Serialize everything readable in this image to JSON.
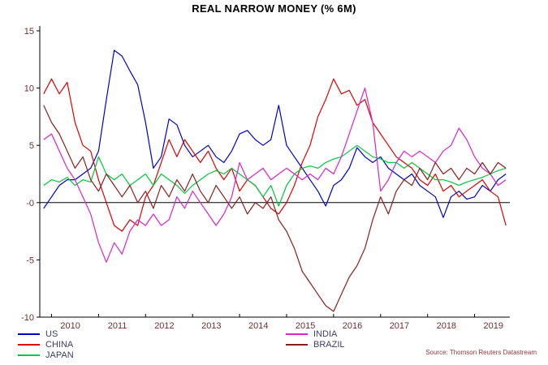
{
  "chart_data": {
    "type": "line",
    "title": "REAL NARROW MONEY (% 6M)",
    "source": "Source: Thomson Reuters Datastream",
    "x_range": [
      2009.75,
      2019.75
    ],
    "y_range": [
      -10,
      15
    ],
    "x_start": 2009.8333,
    "x_step": 0.16667,
    "grid": false,
    "zero_line": true,
    "legend_position": "bottom",
    "legend_columns": [
      [
        "US",
        "CHINA",
        "JAPAN"
      ],
      [
        "INDIA",
        "BRAZIL"
      ]
    ],
    "x_ticks": [
      2010,
      2011,
      2012,
      2013,
      2014,
      2015,
      2016,
      2017,
      2018,
      2019
    ],
    "x_tick_labels": [
      "2010",
      "2011",
      "2012",
      "2013",
      "2014",
      "2015",
      "2016",
      "2017",
      "2018",
      "2019"
    ],
    "y_ticks": [
      {
        "value": 15,
        "label": "15"
      },
      {
        "value": 10,
        "label": "10"
      },
      {
        "value": 5,
        "label": "5"
      },
      {
        "value": 0,
        "label": "-0"
      },
      {
        "value": -5,
        "label": "-5"
      },
      {
        "value": -10,
        "label": "-10"
      }
    ],
    "colors": {
      "background": "#ffffff",
      "axis": "#000000",
      "zero_line": "#000000",
      "title_text": "#000000",
      "tick_text": "#6e2f2f",
      "legend_text": "#3d3d66",
      "source_text": "#8b3a3a"
    },
    "series": [
      {
        "name": "US",
        "color": "#0000cc",
        "values": [
          -0.5,
          0.5,
          1.5,
          2.0,
          2.0,
          2.5,
          3.0,
          4.5,
          9.0,
          13.3,
          12.8,
          11.5,
          10.3,
          7.0,
          3.0,
          4.0,
          7.3,
          6.8,
          5.0,
          4.0,
          4.5,
          5.0,
          4.0,
          3.5,
          4.5,
          6.0,
          6.3,
          5.5,
          5.0,
          5.5,
          8.5,
          5.0,
          4.0,
          3.0,
          2.0,
          1.0,
          -0.3,
          1.5,
          2.0,
          3.0,
          4.8,
          4.0,
          3.5,
          4.0,
          3.0,
          2.5,
          2.0,
          2.5,
          1.5,
          1.0,
          0.5,
          -1.3,
          0.5,
          1.0,
          0.3,
          0.5,
          1.5,
          1.0,
          2.0,
          2.5
        ]
      },
      {
        "name": "CHINA",
        "color": "#e00000",
        "values": [
          9.5,
          10.8,
          9.5,
          10.5,
          7.0,
          5.0,
          4.5,
          2.0,
          0.0,
          -2.0,
          -2.5,
          -1.5,
          -2.0,
          0.5,
          1.5,
          3.5,
          5.5,
          4.0,
          5.5,
          4.5,
          3.5,
          4.5,
          3.0,
          2.0,
          3.0,
          1.0,
          2.0,
          1.5,
          0.5,
          -0.5,
          -1.0,
          0.0,
          1.5,
          3.5,
          5.0,
          7.5,
          9.0,
          10.8,
          9.5,
          9.8,
          8.5,
          9.0,
          7.0,
          6.0,
          5.0,
          4.0,
          3.5,
          3.0,
          2.0,
          1.5,
          2.5,
          1.0,
          1.5,
          0.5,
          1.0,
          1.5,
          2.0,
          1.0,
          0.5,
          -2.0
        ]
      },
      {
        "name": "JAPAN",
        "color": "#00c83c",
        "values": [
          1.5,
          2.0,
          1.8,
          2.2,
          1.5,
          2.0,
          1.8,
          4.0,
          2.5,
          2.0,
          2.5,
          1.5,
          2.0,
          2.5,
          1.5,
          2.5,
          2.0,
          1.5,
          0.8,
          1.5,
          2.0,
          2.5,
          2.8,
          2.5,
          3.0,
          2.5,
          2.0,
          1.5,
          0.5,
          1.5,
          -0.3,
          1.5,
          2.5,
          3.0,
          3.2,
          3.0,
          3.5,
          3.8,
          4.0,
          4.5,
          5.0,
          4.5,
          4.0,
          3.8,
          3.5,
          3.5,
          3.0,
          3.5,
          3.0,
          2.5,
          2.0,
          2.0,
          1.8,
          1.5,
          1.8,
          2.0,
          2.2,
          2.5,
          2.8,
          3.0
        ]
      },
      {
        "name": "INDIA",
        "color": "#dd22cc",
        "values": [
          5.5,
          6.0,
          4.5,
          3.0,
          2.0,
          0.5,
          -1.0,
          -3.5,
          -5.2,
          -3.5,
          -4.5,
          -2.5,
          -1.5,
          -2.0,
          -1.0,
          -2.0,
          -1.5,
          0.5,
          -0.5,
          1.0,
          0.0,
          -1.0,
          -2.0,
          -1.0,
          0.5,
          3.5,
          2.0,
          2.5,
          3.0,
          2.0,
          2.5,
          3.0,
          2.5,
          2.0,
          2.5,
          2.0,
          3.0,
          2.5,
          4.0,
          6.0,
          8.0,
          10.0,
          7.0,
          1.0,
          2.0,
          3.5,
          4.5,
          4.0,
          4.5,
          4.0,
          3.5,
          4.5,
          5.0,
          6.5,
          5.5,
          4.0,
          3.0,
          2.5,
          1.5,
          2.0
        ]
      },
      {
        "name": "BRAZIL",
        "color": "#8b1f1f",
        "values": [
          8.5,
          7.0,
          6.0,
          4.5,
          3.0,
          4.0,
          2.0,
          1.0,
          2.5,
          1.5,
          0.5,
          1.5,
          0.0,
          1.0,
          -0.5,
          1.5,
          0.5,
          2.0,
          1.0,
          2.5,
          1.0,
          0.0,
          1.5,
          0.5,
          -0.5,
          0.5,
          -1.0,
          0.0,
          -0.5,
          0.5,
          -1.5,
          -2.5,
          -4.0,
          -6.0,
          -7.0,
          -8.0,
          -9.0,
          -9.5,
          -8.0,
          -6.5,
          -5.5,
          -4.0,
          -1.5,
          0.5,
          -1.0,
          1.0,
          2.0,
          1.5,
          3.0,
          2.0,
          3.5,
          2.5,
          3.0,
          2.0,
          3.0,
          2.5,
          3.5,
          2.5,
          3.5,
          3.0
        ]
      }
    ]
  }
}
